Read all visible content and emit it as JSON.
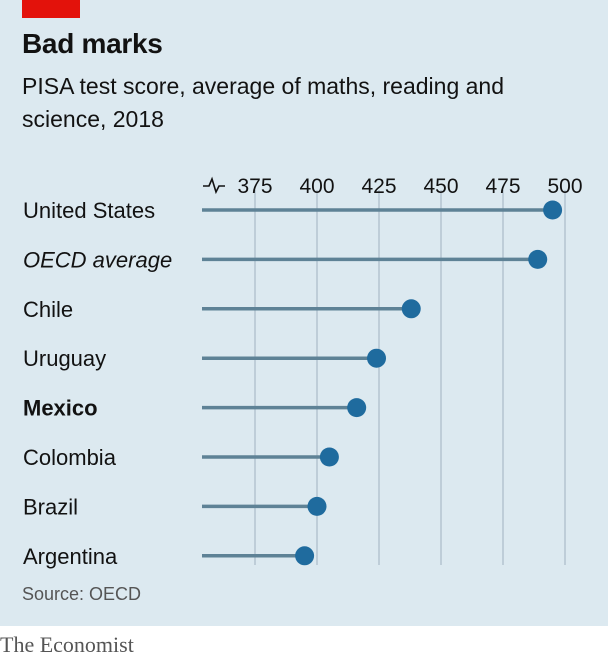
{
  "header": {
    "title": "Bad marks",
    "subtitle": "PISA test score, average of maths, reading and science, 2018"
  },
  "footer": {
    "source": "Source: OECD",
    "brand": "The Economist"
  },
  "colors": {
    "background": "#dce9f0",
    "accent_tag": "#e3120b",
    "dot": "#1f6b9e",
    "stem": "#5e8296",
    "grid": "#b3c4cf"
  },
  "chart_data": {
    "type": "dot",
    "xlim": [
      350,
      500
    ],
    "axis_break": true,
    "ticks": [
      375,
      400,
      425,
      450,
      475,
      500
    ],
    "grid": true,
    "categories": [
      {
        "label": "United States",
        "value": 495,
        "style": "normal"
      },
      {
        "label": "OECD average",
        "value": 489,
        "style": "italic"
      },
      {
        "label": "Chile",
        "value": 438,
        "style": "normal"
      },
      {
        "label": "Uruguay",
        "value": 424,
        "style": "normal"
      },
      {
        "label": "Mexico",
        "value": 416,
        "style": "bold"
      },
      {
        "label": "Colombia",
        "value": 405,
        "style": "normal"
      },
      {
        "label": "Brazil",
        "value": 400,
        "style": "normal"
      },
      {
        "label": "Argentina",
        "value": 395,
        "style": "normal"
      }
    ]
  }
}
